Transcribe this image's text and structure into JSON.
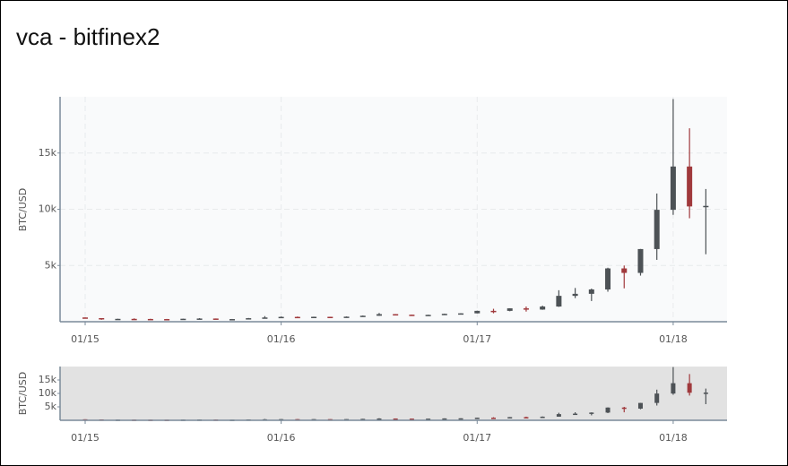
{
  "chart_data": {
    "type": "candlestick",
    "title": "vca - bitfinex2",
    "y_label": "BTC/USD",
    "x": [
      "2014-12",
      "2015-01",
      "2015-02",
      "2015-03",
      "2015-04",
      "2015-05",
      "2015-06",
      "2015-07",
      "2015-08",
      "2015-09",
      "2015-10",
      "2015-11",
      "2015-12",
      "2016-01",
      "2016-02",
      "2016-03",
      "2016-04",
      "2016-05",
      "2016-06",
      "2016-07",
      "2016-08",
      "2016-09",
      "2016-10",
      "2016-11",
      "2016-12",
      "2017-01",
      "2017-02",
      "2017-03",
      "2017-04",
      "2017-05",
      "2017-06",
      "2017-07",
      "2017-08",
      "2017-09",
      "2017-10",
      "2017-11",
      "2017-12",
      "2018-01",
      "2018-02"
    ],
    "open": [
      378,
      320,
      217,
      254,
      244,
      236,
      230,
      263,
      284,
      230,
      236,
      314,
      377,
      430,
      369,
      437,
      416,
      448,
      531,
      673,
      624,
      575,
      609,
      701,
      745,
      966,
      965,
      1190,
      1080,
      1350,
      2300,
      2480,
      2870,
      4740,
      4340,
      6460,
      9950,
      13800,
      10250
    ],
    "high": [
      380,
      320,
      265,
      298,
      262,
      247,
      267,
      317,
      287,
      245,
      334,
      500,
      467,
      460,
      448,
      440,
      468,
      550,
      780,
      680,
      626,
      620,
      720,
      760,
      980,
      1150,
      1200,
      1350,
      1430,
      2800,
      3000,
      2950,
      4800,
      5000,
      6470,
      11400,
      19800,
      17200,
      11800
    ],
    "low": [
      310,
      170,
      210,
      236,
      214,
      228,
      218,
      253,
      198,
      225,
      235,
      300,
      350,
      352,
      366,
      393,
      412,
      440,
      520,
      590,
      530,
      570,
      605,
      690,
      740,
      750,
      930,
      900,
      1060,
      1320,
      2100,
      1840,
      2670,
      2970,
      4100,
      5500,
      9500,
      9200,
      6000
    ],
    "close": [
      320,
      217,
      254,
      244,
      236,
      230,
      263,
      284,
      230,
      236,
      314,
      377,
      430,
      369,
      437,
      416,
      448,
      531,
      673,
      624,
      575,
      609,
      701,
      745,
      966,
      965,
      1190,
      1080,
      1350,
      2300,
      2480,
      2870,
      4740,
      4340,
      6460,
      9950,
      13800,
      10250,
      10300
    ],
    "up_color": "#4d5256",
    "down_color": "#a0393c",
    "ylim": [
      0,
      20000
    ],
    "yticks": [
      {
        "value": 5000,
        "label": "5k"
      },
      {
        "value": 10000,
        "label": "10k"
      },
      {
        "value": 15000,
        "label": "15k"
      }
    ],
    "xticks": [
      {
        "value": "2015-01",
        "label": "01/15"
      },
      {
        "value": "2016-01",
        "label": "01/16"
      },
      {
        "value": "2017-01",
        "label": "01/17"
      },
      {
        "value": "2018-01",
        "label": "01/18"
      }
    ],
    "grid": true
  }
}
